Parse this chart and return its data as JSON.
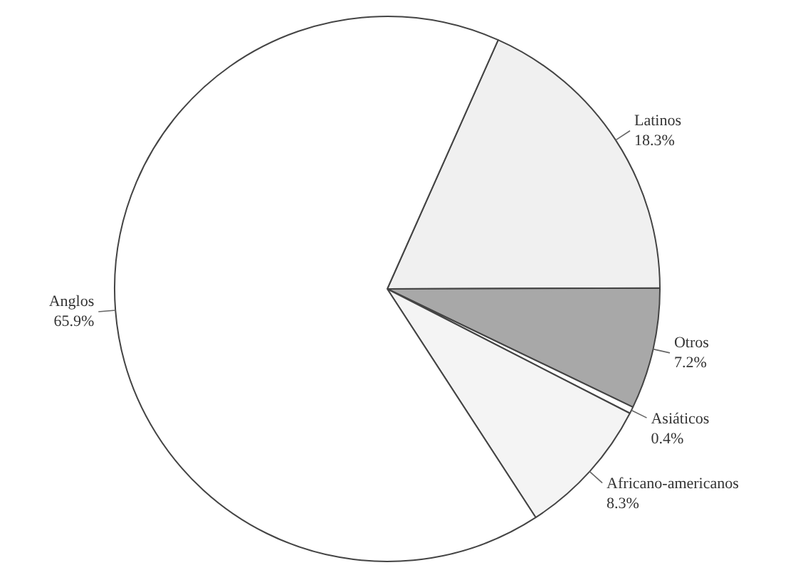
{
  "chart_data": {
    "type": "pie",
    "categories": [
      "Latinos",
      "Otros",
      "Asiáticos",
      "Africano-americanos",
      "Anglos"
    ],
    "values": [
      18.3,
      7.2,
      0.4,
      8.3,
      65.9
    ],
    "value_labels": [
      "18.3%",
      "7.2%",
      "0.4%",
      "8.3%",
      "65.9%"
    ],
    "colors": [
      "#f0f0f0",
      "#a8a8a8",
      "#ffffff",
      "#f4f4f4",
      "#ffffff"
    ]
  }
}
